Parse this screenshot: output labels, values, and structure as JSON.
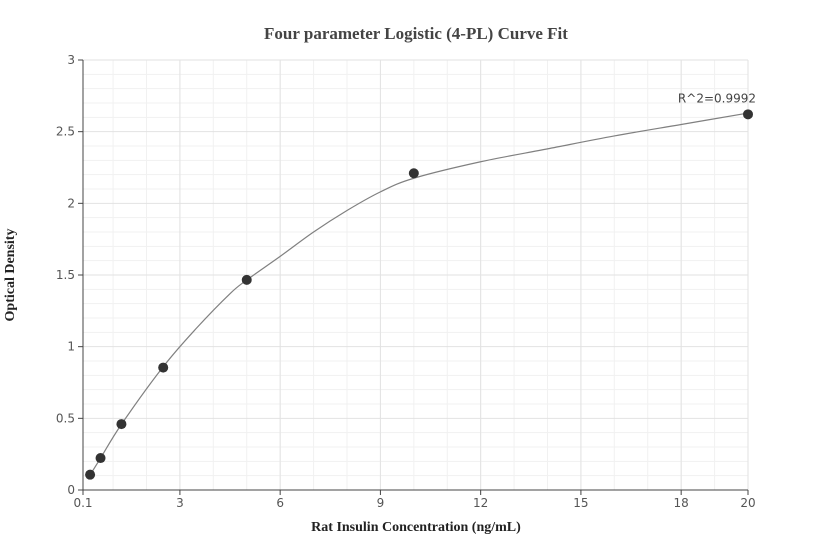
{
  "chart_data": {
    "type": "scatter",
    "title": "Four parameter Logistic (4-PL) Curve Fit",
    "xlabel": "Rat Insulin Concentration (ng/mL)",
    "ylabel": "Optical Density",
    "xlim": [
      0.1,
      20
    ],
    "ylim": [
      0,
      3
    ],
    "x_ticks": [
      0.1,
      3,
      6,
      9,
      12,
      15,
      18,
      20
    ],
    "x_tick_labels": [
      "0.1",
      "3",
      "6",
      "9",
      "12",
      "15",
      "18",
      "20"
    ],
    "y_ticks": [
      0,
      0.5,
      1,
      1.5,
      2,
      2.5,
      3
    ],
    "y_tick_labels": [
      "0",
      "0.5",
      "1",
      "1.5",
      "2",
      "2.5",
      "3"
    ],
    "grid": true,
    "series": [
      {
        "x": [
          0.3125,
          0.625,
          1.25,
          2.5,
          5,
          10,
          20
        ],
        "y": [
          0.107,
          0.223,
          0.46,
          0.854,
          1.466,
          2.21,
          2.621
        ],
        "color": "#333333"
      }
    ],
    "fit_curve": {
      "x": [
        0.3125,
        0.625,
        1.25,
        2.5,
        3.5,
        4.5,
        5,
        6,
        7,
        8,
        9,
        10,
        12,
        14,
        16,
        18,
        20
      ],
      "y": [
        0.105,
        0.222,
        0.458,
        0.86,
        1.13,
        1.37,
        1.465,
        1.63,
        1.8,
        1.95,
        2.08,
        2.175,
        2.29,
        2.38,
        2.47,
        2.55,
        2.63
      ],
      "color": "#808080"
    },
    "annotations": [
      {
        "text": "R^2=0.9992"
      }
    ]
  }
}
